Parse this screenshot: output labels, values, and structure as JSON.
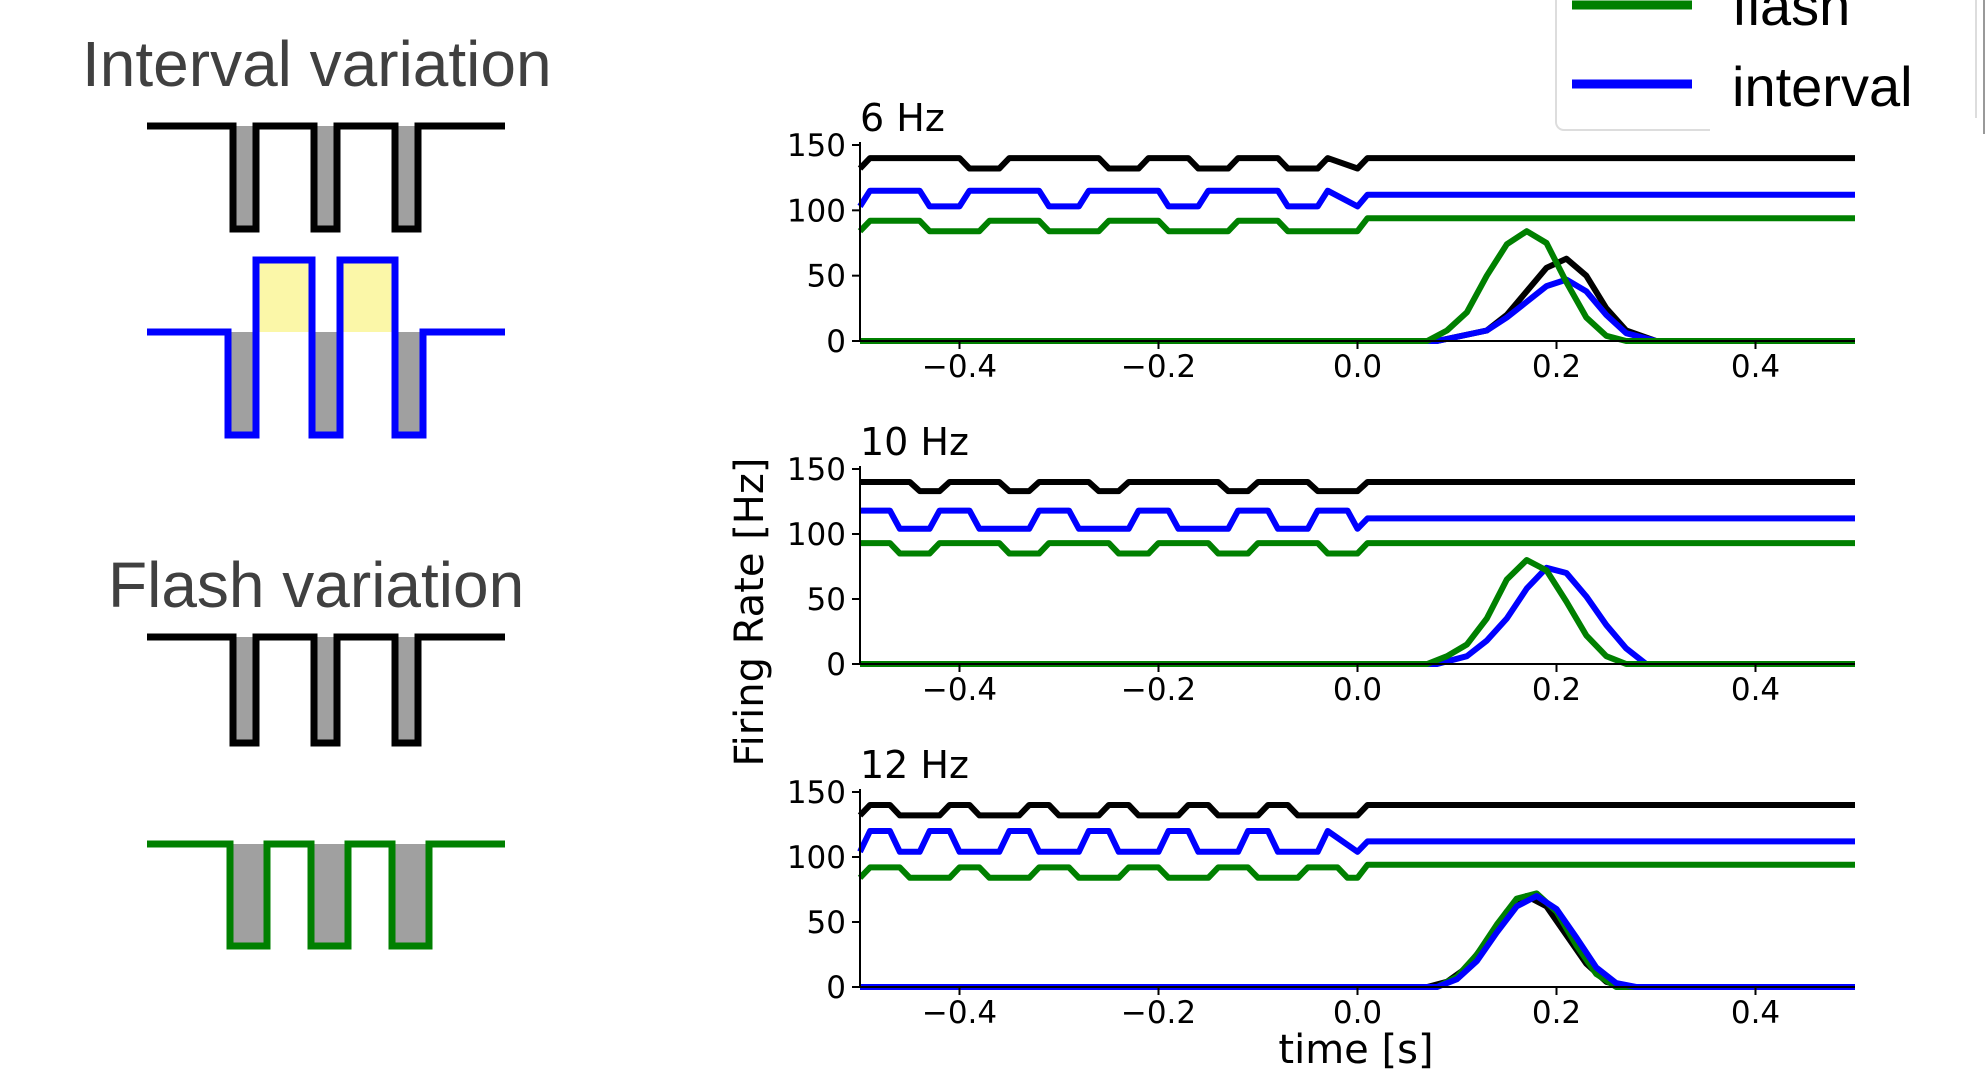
{
  "diagrams": {
    "interval_title": "Interval variation",
    "flash_title": "Flash variation"
  },
  "legend": {
    "entries": [
      {
        "label": "flash",
        "color": "#008000"
      },
      {
        "label": "interval",
        "color": "#0000ff"
      }
    ]
  },
  "colors": {
    "standard": "#000000",
    "flash": "#008000",
    "interval": "#0000ff",
    "pulse_fill": "#a0a0a0",
    "interval_fill": "#fbf7a8"
  },
  "chart_data": [
    {
      "type": "line",
      "title": "6 Hz",
      "xlim": [
        -0.5,
        0.5
      ],
      "ylim": [
        0,
        150
      ],
      "xticks": [
        -0.4,
        -0.2,
        0.0,
        0.2,
        0.4
      ],
      "xtick_labels": [
        "−0.4",
        "−0.2",
        "0.0",
        "0.2",
        "0.4"
      ],
      "yticks": [
        0,
        50,
        100,
        150
      ],
      "ytick_labels": [
        "0",
        "50",
        "100",
        "150"
      ],
      "xlabel": "",
      "ylabel": "",
      "series": [
        {
          "color": "#000000",
          "x": [
            -0.5,
            -0.49,
            -0.4,
            -0.39,
            -0.36,
            -0.35,
            -0.26,
            -0.25,
            -0.22,
            -0.21,
            -0.17,
            -0.16,
            -0.13,
            -0.12,
            -0.08,
            -0.07,
            -0.04,
            -0.03,
            0.0,
            0.01,
            0.5
          ],
          "y": [
            132,
            140,
            140,
            132,
            132,
            140,
            140,
            132,
            132,
            140,
            140,
            132,
            132,
            140,
            140,
            132,
            132,
            140,
            132,
            140,
            140
          ]
        },
        {
          "color": "#0000ff",
          "x": [
            -0.5,
            -0.49,
            -0.44,
            -0.43,
            -0.4,
            -0.39,
            -0.32,
            -0.31,
            -0.28,
            -0.27,
            -0.2,
            -0.19,
            -0.16,
            -0.15,
            -0.08,
            -0.07,
            -0.04,
            -0.03,
            0.0,
            0.01,
            0.5
          ],
          "y": [
            103,
            115,
            115,
            103,
            103,
            115,
            115,
            103,
            103,
            115,
            115,
            103,
            103,
            115,
            115,
            103,
            103,
            115,
            103,
            112,
            112
          ]
        },
        {
          "color": "#008000",
          "x": [
            -0.5,
            -0.49,
            -0.44,
            -0.43,
            -0.38,
            -0.37,
            -0.32,
            -0.31,
            -0.26,
            -0.25,
            -0.2,
            -0.19,
            -0.13,
            -0.12,
            -0.08,
            -0.07,
            0.0,
            0.01,
            0.5
          ],
          "y": [
            84,
            92,
            92,
            84,
            84,
            92,
            92,
            84,
            84,
            92,
            92,
            84,
            84,
            92,
            92,
            84,
            84,
            94,
            94
          ]
        },
        {
          "color": "#000000",
          "x": [
            -0.5,
            0.08,
            0.13,
            0.15,
            0.17,
            0.19,
            0.21,
            0.23,
            0.25,
            0.27,
            0.3,
            0.5
          ],
          "y": [
            0,
            0,
            8,
            20,
            38,
            56,
            63,
            50,
            25,
            8,
            0,
            0
          ]
        },
        {
          "color": "#0000ff",
          "x": [
            -0.5,
            0.08,
            0.13,
            0.15,
            0.17,
            0.19,
            0.21,
            0.23,
            0.25,
            0.27,
            0.3,
            0.5
          ],
          "y": [
            0,
            0,
            8,
            18,
            30,
            42,
            47,
            38,
            20,
            6,
            0,
            0
          ]
        },
        {
          "color": "#008000",
          "x": [
            -0.5,
            0.07,
            0.09,
            0.11,
            0.13,
            0.15,
            0.17,
            0.19,
            0.21,
            0.23,
            0.25,
            0.27,
            0.5
          ],
          "y": [
            0,
            0,
            8,
            22,
            50,
            74,
            84,
            75,
            45,
            18,
            4,
            0,
            0
          ]
        }
      ]
    },
    {
      "type": "line",
      "title": "10 Hz",
      "xlim": [
        -0.5,
        0.5
      ],
      "ylim": [
        0,
        150
      ],
      "xticks": [
        -0.4,
        -0.2,
        0.0,
        0.2,
        0.4
      ],
      "xtick_labels": [
        "−0.4",
        "−0.2",
        "0.0",
        "0.2",
        "0.4"
      ],
      "yticks": [
        0,
        50,
        100,
        150
      ],
      "ytick_labels": [
        "0",
        "50",
        "100",
        "150"
      ],
      "xlabel": "",
      "ylabel": "Firing Rate [Hz]",
      "series": [
        {
          "color": "#000000",
          "x": [
            -0.5,
            -0.45,
            -0.44,
            -0.42,
            -0.41,
            -0.36,
            -0.35,
            -0.33,
            -0.32,
            -0.27,
            -0.26,
            -0.24,
            -0.23,
            -0.14,
            -0.13,
            -0.11,
            -0.1,
            -0.05,
            -0.04,
            -0.01,
            0.0,
            0.01,
            0.5
          ],
          "y": [
            140,
            140,
            133,
            133,
            140,
            140,
            133,
            133,
            140,
            140,
            133,
            133,
            140,
            140,
            133,
            133,
            140,
            140,
            133,
            133,
            133,
            140,
            140
          ]
        },
        {
          "color": "#0000ff",
          "x": [
            -0.5,
            -0.47,
            -0.46,
            -0.43,
            -0.42,
            -0.39,
            -0.38,
            -0.33,
            -0.32,
            -0.29,
            -0.28,
            -0.23,
            -0.22,
            -0.19,
            -0.18,
            -0.13,
            -0.12,
            -0.09,
            -0.08,
            -0.05,
            -0.04,
            -0.01,
            0.0,
            0.01,
            0.5
          ],
          "y": [
            118,
            118,
            104,
            104,
            118,
            118,
            104,
            104,
            118,
            118,
            104,
            104,
            118,
            118,
            104,
            104,
            118,
            118,
            104,
            104,
            118,
            118,
            104,
            112,
            112
          ]
        },
        {
          "color": "#008000",
          "x": [
            -0.5,
            -0.47,
            -0.46,
            -0.43,
            -0.42,
            -0.36,
            -0.35,
            -0.32,
            -0.31,
            -0.25,
            -0.24,
            -0.21,
            -0.2,
            -0.15,
            -0.14,
            -0.11,
            -0.1,
            -0.04,
            -0.03,
            0.0,
            0.01,
            0.5
          ],
          "y": [
            93,
            93,
            85,
            85,
            93,
            93,
            85,
            85,
            93,
            93,
            85,
            85,
            93,
            93,
            85,
            85,
            93,
            93,
            85,
            85,
            93,
            93
          ]
        },
        {
          "color": "#0000ff",
          "x": [
            -0.5,
            0.08,
            0.11,
            0.13,
            0.15,
            0.17,
            0.19,
            0.21,
            0.23,
            0.25,
            0.27,
            0.29,
            0.5
          ],
          "y": [
            0,
            0,
            6,
            18,
            35,
            58,
            74,
            70,
            52,
            30,
            12,
            0,
            0
          ]
        },
        {
          "color": "#008000",
          "x": [
            -0.5,
            0.07,
            0.09,
            0.11,
            0.13,
            0.15,
            0.17,
            0.19,
            0.21,
            0.23,
            0.25,
            0.27,
            0.5
          ],
          "y": [
            0,
            0,
            6,
            15,
            35,
            65,
            80,
            72,
            48,
            22,
            6,
            0,
            0
          ]
        }
      ]
    },
    {
      "type": "line",
      "title": "12 Hz",
      "xlim": [
        -0.5,
        0.5
      ],
      "ylim": [
        0,
        150
      ],
      "xticks": [
        -0.4,
        -0.2,
        0.0,
        0.2,
        0.4
      ],
      "xtick_labels": [
        "−0.4",
        "−0.2",
        "0.0",
        "0.2",
        "0.4"
      ],
      "yticks": [
        0,
        50,
        100,
        150
      ],
      "ytick_labels": [
        "0",
        "50",
        "100",
        "150"
      ],
      "xlabel": "time [s]",
      "ylabel": "",
      "series": [
        {
          "color": "#000000",
          "x": [
            -0.5,
            -0.49,
            -0.47,
            -0.46,
            -0.42,
            -0.41,
            -0.39,
            -0.38,
            -0.34,
            -0.33,
            -0.31,
            -0.3,
            -0.26,
            -0.25,
            -0.23,
            -0.22,
            -0.18,
            -0.17,
            -0.15,
            -0.14,
            -0.1,
            -0.09,
            -0.07,
            -0.06,
            -0.02,
            -0.01,
            0.0,
            0.01,
            0.5
          ],
          "y": [
            132,
            140,
            140,
            132,
            132,
            140,
            140,
            132,
            132,
            140,
            140,
            132,
            132,
            140,
            140,
            132,
            132,
            140,
            140,
            132,
            132,
            140,
            140,
            132,
            132,
            132,
            132,
            140,
            140
          ]
        },
        {
          "color": "#0000ff",
          "x": [
            -0.5,
            -0.49,
            -0.47,
            -0.46,
            -0.44,
            -0.43,
            -0.41,
            -0.4,
            -0.36,
            -0.35,
            -0.33,
            -0.32,
            -0.28,
            -0.27,
            -0.25,
            -0.24,
            -0.2,
            -0.19,
            -0.17,
            -0.16,
            -0.12,
            -0.11,
            -0.09,
            -0.08,
            -0.04,
            -0.03,
            0.0,
            0.01,
            0.5
          ],
          "y": [
            104,
            120,
            120,
            104,
            104,
            120,
            120,
            104,
            104,
            120,
            120,
            104,
            104,
            120,
            120,
            104,
            104,
            120,
            120,
            104,
            104,
            120,
            120,
            104,
            104,
            120,
            104,
            112,
            112
          ]
        },
        {
          "color": "#008000",
          "x": [
            -0.5,
            -0.49,
            -0.46,
            -0.45,
            -0.41,
            -0.4,
            -0.38,
            -0.37,
            -0.33,
            -0.32,
            -0.29,
            -0.28,
            -0.24,
            -0.23,
            -0.2,
            -0.19,
            -0.15,
            -0.14,
            -0.11,
            -0.1,
            -0.06,
            -0.05,
            -0.02,
            -0.01,
            0.0,
            0.01,
            0.5
          ],
          "y": [
            84,
            92,
            92,
            84,
            84,
            92,
            92,
            84,
            84,
            92,
            92,
            84,
            84,
            92,
            92,
            84,
            84,
            92,
            92,
            84,
            84,
            92,
            92,
            84,
            84,
            94,
            94
          ]
        },
        {
          "color": "#000000",
          "x": [
            -0.5,
            0.07,
            0.09,
            0.11,
            0.13,
            0.15,
            0.17,
            0.19,
            0.21,
            0.23,
            0.25,
            0.27,
            0.5
          ],
          "y": [
            0,
            0,
            4,
            15,
            35,
            58,
            70,
            62,
            40,
            18,
            4,
            0,
            0
          ]
        },
        {
          "color": "#008000",
          "x": [
            -0.5,
            0.08,
            0.1,
            0.12,
            0.14,
            0.16,
            0.18,
            0.2,
            0.22,
            0.24,
            0.26,
            0.5
          ],
          "y": [
            0,
            0,
            8,
            25,
            48,
            68,
            72,
            58,
            32,
            10,
            0,
            0
          ]
        },
        {
          "color": "#0000ff",
          "x": [
            -0.5,
            0.08,
            0.1,
            0.12,
            0.14,
            0.16,
            0.18,
            0.2,
            0.22,
            0.24,
            0.26,
            0.28,
            0.5
          ],
          "y": [
            0,
            0,
            6,
            20,
            42,
            62,
            70,
            60,
            38,
            15,
            3,
            0,
            0
          ]
        }
      ]
    }
  ]
}
